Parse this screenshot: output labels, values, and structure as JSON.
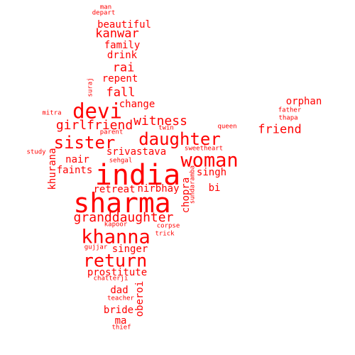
{
  "word_cloud": {
    "color": "#ff0000",
    "words": [
      "man",
      "depart",
      "beautiful",
      "kanwar",
      "family",
      "drink",
      "rai",
      "repent",
      "suraj",
      "fall",
      "change",
      "devi",
      "mitra",
      "witness",
      "girlfriend",
      "twin",
      "parent",
      "daughter",
      "queen",
      "friend",
      "orphan",
      "father",
      "thapa",
      "sister",
      "study",
      "srivastava",
      "sweetheart",
      "woman",
      "sehgal",
      "nair",
      "faints",
      "singh",
      "india",
      "khurana",
      "retreat",
      "nirbhay",
      "bi",
      "sundaramba",
      "chopra",
      "sharma",
      "granddaughter",
      "corpse",
      "kapoor",
      "trick",
      "khanna",
      "gujjar",
      "singer",
      "return",
      "prostitute",
      "chatterji",
      "dad",
      "oberoi",
      "teacher",
      "bride",
      "ma",
      "thief"
    ]
  }
}
